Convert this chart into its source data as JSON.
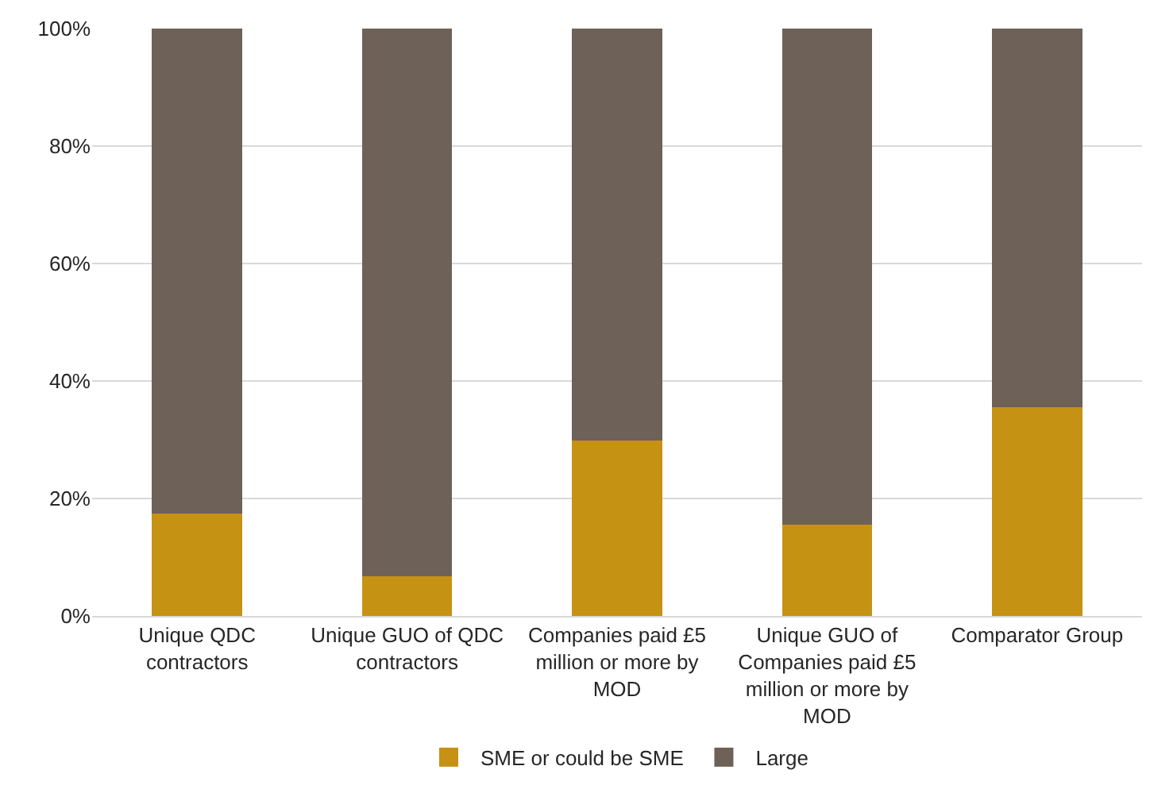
{
  "chart_data": {
    "type": "bar",
    "stacked": true,
    "categories": [
      "Unique QDC contractors",
      "Unique GUO of QDC contractors",
      "Companies paid £5 million or more by MOD",
      "Unique GUO of Companies paid £5 million or more by MOD",
      "Comparator Group"
    ],
    "series": [
      {
        "name": "SME or could be SME",
        "color": "#c59214",
        "values": [
          17.5,
          6.8,
          29.8,
          15.5,
          35.6
        ]
      },
      {
        "name": "Large",
        "color": "#6e6157",
        "values": [
          82.5,
          93.2,
          70.2,
          84.5,
          64.4
        ]
      }
    ],
    "ylim": [
      0,
      100
    ],
    "yticks": [
      {
        "value": 0,
        "label": "0%"
      },
      {
        "value": 20,
        "label": "20%"
      },
      {
        "value": 40,
        "label": "40%"
      },
      {
        "value": 60,
        "label": "60%"
      },
      {
        "value": 80,
        "label": "80%"
      },
      {
        "value": 100,
        "label": "100%"
      }
    ],
    "grid": "y",
    "legend": "bottom"
  }
}
